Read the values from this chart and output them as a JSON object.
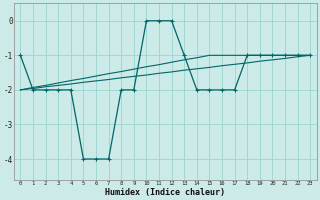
{
  "xlabel": "Humidex (Indice chaleur)",
  "bg_color": "#cceae7",
  "grid_color": "#99d5d0",
  "line_color": "#006666",
  "x": [
    0,
    1,
    2,
    3,
    4,
    5,
    6,
    7,
    8,
    9,
    10,
    11,
    12,
    13,
    14,
    15,
    16,
    17,
    18,
    19,
    20,
    21,
    22,
    23
  ],
  "y_main": [
    -1,
    -2,
    -2,
    -2,
    -2,
    -4,
    -4,
    -4,
    -2,
    -2,
    0,
    0,
    0,
    -1,
    -2,
    -2,
    -2,
    -2,
    -1,
    -1,
    -1,
    -1,
    -1,
    -1
  ],
  "y_trend1": [
    -2.0,
    -1.96,
    -1.91,
    -1.87,
    -1.83,
    -1.78,
    -1.74,
    -1.7,
    -1.65,
    -1.61,
    -1.57,
    -1.52,
    -1.48,
    -1.43,
    -1.39,
    -1.35,
    -1.3,
    -1.26,
    -1.22,
    -1.17,
    -1.13,
    -1.09,
    -1.04,
    -1.0
  ],
  "y_trend2": [
    -2.0,
    -1.93,
    -1.87,
    -1.8,
    -1.73,
    -1.67,
    -1.6,
    -1.53,
    -1.47,
    -1.4,
    -1.33,
    -1.27,
    -1.2,
    -1.13,
    -1.07,
    -1.0,
    -1.0,
    -1.0,
    -1.0,
    -1.0,
    -1.0,
    -1.0,
    -1.0,
    -1.0
  ],
  "xlim": [
    -0.5,
    23.5
  ],
  "ylim": [
    -4.6,
    0.5
  ],
  "yticks": [
    0,
    -1,
    -2,
    -3,
    -4
  ],
  "xticks": [
    0,
    1,
    2,
    3,
    4,
    5,
    6,
    7,
    8,
    9,
    10,
    11,
    12,
    13,
    14,
    15,
    16,
    17,
    18,
    19,
    20,
    21,
    22,
    23
  ]
}
